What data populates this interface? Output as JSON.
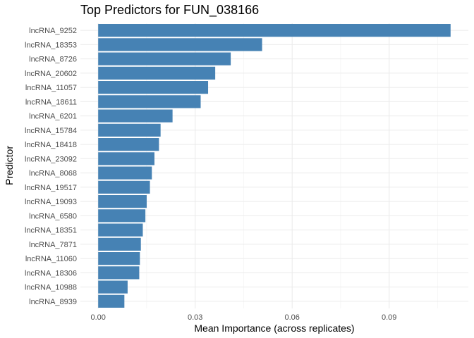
{
  "chart_data": {
    "type": "bar",
    "orientation": "horizontal",
    "title": "Top Predictors for FUN_038166",
    "xlabel": "Mean Importance (across replicates)",
    "ylabel": "Predictor",
    "xlim": [
      -0.0055,
      0.1145
    ],
    "xticks": [
      0.0,
      0.03,
      0.06,
      0.09
    ],
    "xtick_labels": [
      "0.00",
      "0.03",
      "0.06",
      "0.09"
    ],
    "categories": [
      "lncRNA_9252",
      "lncRNA_18353",
      "lncRNA_8726",
      "lncRNA_20602",
      "lncRNA_11057",
      "lncRNA_18611",
      "lncRNA_6201",
      "lncRNA_15784",
      "lncRNA_18418",
      "lncRNA_23092",
      "lncRNA_8068",
      "lncRNA_19517",
      "lncRNA_19093",
      "lncRNA_6580",
      "lncRNA_18351",
      "lncRNA_7871",
      "lncRNA_11060",
      "lncRNA_18306",
      "lncRNA_10988",
      "lncRNA_8939"
    ],
    "values": [
      0.109,
      0.0507,
      0.041,
      0.0362,
      0.034,
      0.0317,
      0.023,
      0.0193,
      0.0188,
      0.0174,
      0.0166,
      0.016,
      0.015,
      0.0146,
      0.0138,
      0.0132,
      0.0129,
      0.0127,
      0.0091,
      0.0081
    ],
    "bar_color": "#4682B4",
    "grid": true,
    "legend": "none"
  }
}
